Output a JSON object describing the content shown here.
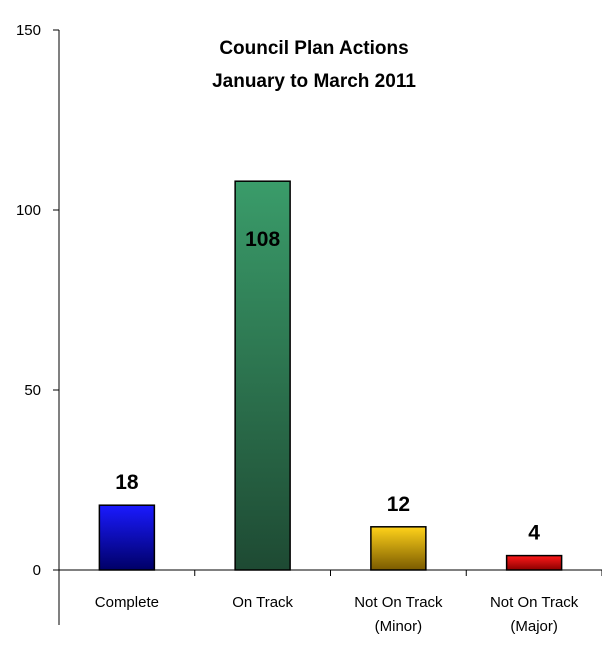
{
  "chart_data": {
    "type": "bar",
    "title": "Council Plan Actions",
    "subtitle": "January to March 2011",
    "categories": [
      [
        "Complete"
      ],
      [
        "On Track"
      ],
      [
        "Not On Track",
        "(Minor)"
      ],
      [
        "Not On Track",
        "(Major)"
      ]
    ],
    "values": [
      18,
      108,
      12,
      4
    ],
    "ylim": [
      0,
      150
    ],
    "yticks": [
      0,
      50,
      100,
      150
    ],
    "grid": false,
    "legend": "none",
    "colors": {
      "bars": [
        {
          "top": "#1a1aff",
          "bottom": "#000066",
          "text": "#000000"
        },
        {
          "top": "#3a9c6a",
          "bottom": "#1e4a33",
          "text": "#000000"
        },
        {
          "top": "#ffd21a",
          "bottom": "#7a5a00",
          "text": "#000000"
        },
        {
          "top": "#ff1a1a",
          "bottom": "#8a0000",
          "text": "#000000"
        }
      ],
      "axis": "#000000"
    }
  }
}
